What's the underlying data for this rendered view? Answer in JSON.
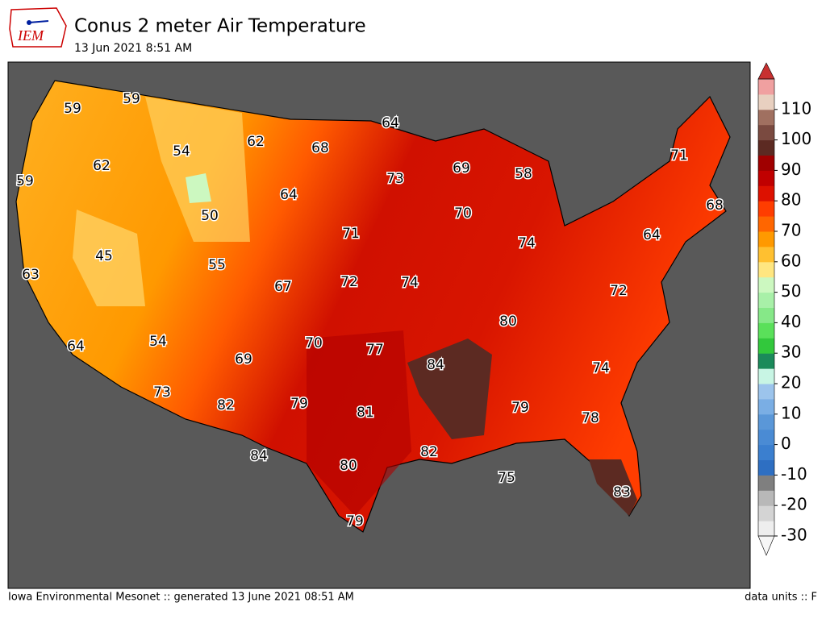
{
  "header": {
    "logo": "IEM",
    "title": "Conus 2 meter Air Temperature",
    "subtitle": "13 Jun 2021 8:51 AM"
  },
  "map": {
    "labels": [
      59,
      59,
      54,
      62,
      68,
      64,
      62,
      59,
      73,
      69,
      58,
      71,
      68,
      50,
      64,
      70,
      45,
      55,
      71,
      74,
      64,
      63,
      67,
      72,
      74,
      72,
      80,
      54,
      70,
      77,
      84,
      64,
      69,
      74,
      73,
      82,
      79,
      81,
      79,
      78,
      82,
      84,
      80,
      75,
      83,
      79
    ]
  },
  "colorbar": {
    "lim": [
      -30,
      120
    ],
    "ticks": [
      -30,
      -20,
      -10,
      0,
      10,
      20,
      30,
      40,
      50,
      60,
      70,
      80,
      90,
      100,
      110
    ],
    "colors": [
      "#eeeeee",
      "#d4d4d4",
      "#b8b8b8",
      "#7f7f7f",
      "#2e6fc2",
      "#3b7fcf",
      "#4a8bd4",
      "#5a97d8",
      "#7aaee4",
      "#9cc4ec",
      "#c8f5e4",
      "#1b8a5a",
      "#32c83c",
      "#5ae05a",
      "#86e888",
      "#a8f0a8",
      "#ccf8c0",
      "#ffe680",
      "#ffc030",
      "#ff9900",
      "#ff6600",
      "#ff3d00",
      "#dd1100",
      "#c00000",
      "#a00000",
      "#5c2a22",
      "#7a4a40",
      "#a07060",
      "#e8d0c0",
      "#f0a0a0"
    ]
  },
  "footer": {
    "left": "Iowa Environmental Mesonet :: generated 13 June 2021 08:51 AM",
    "right": "data units :: F"
  }
}
